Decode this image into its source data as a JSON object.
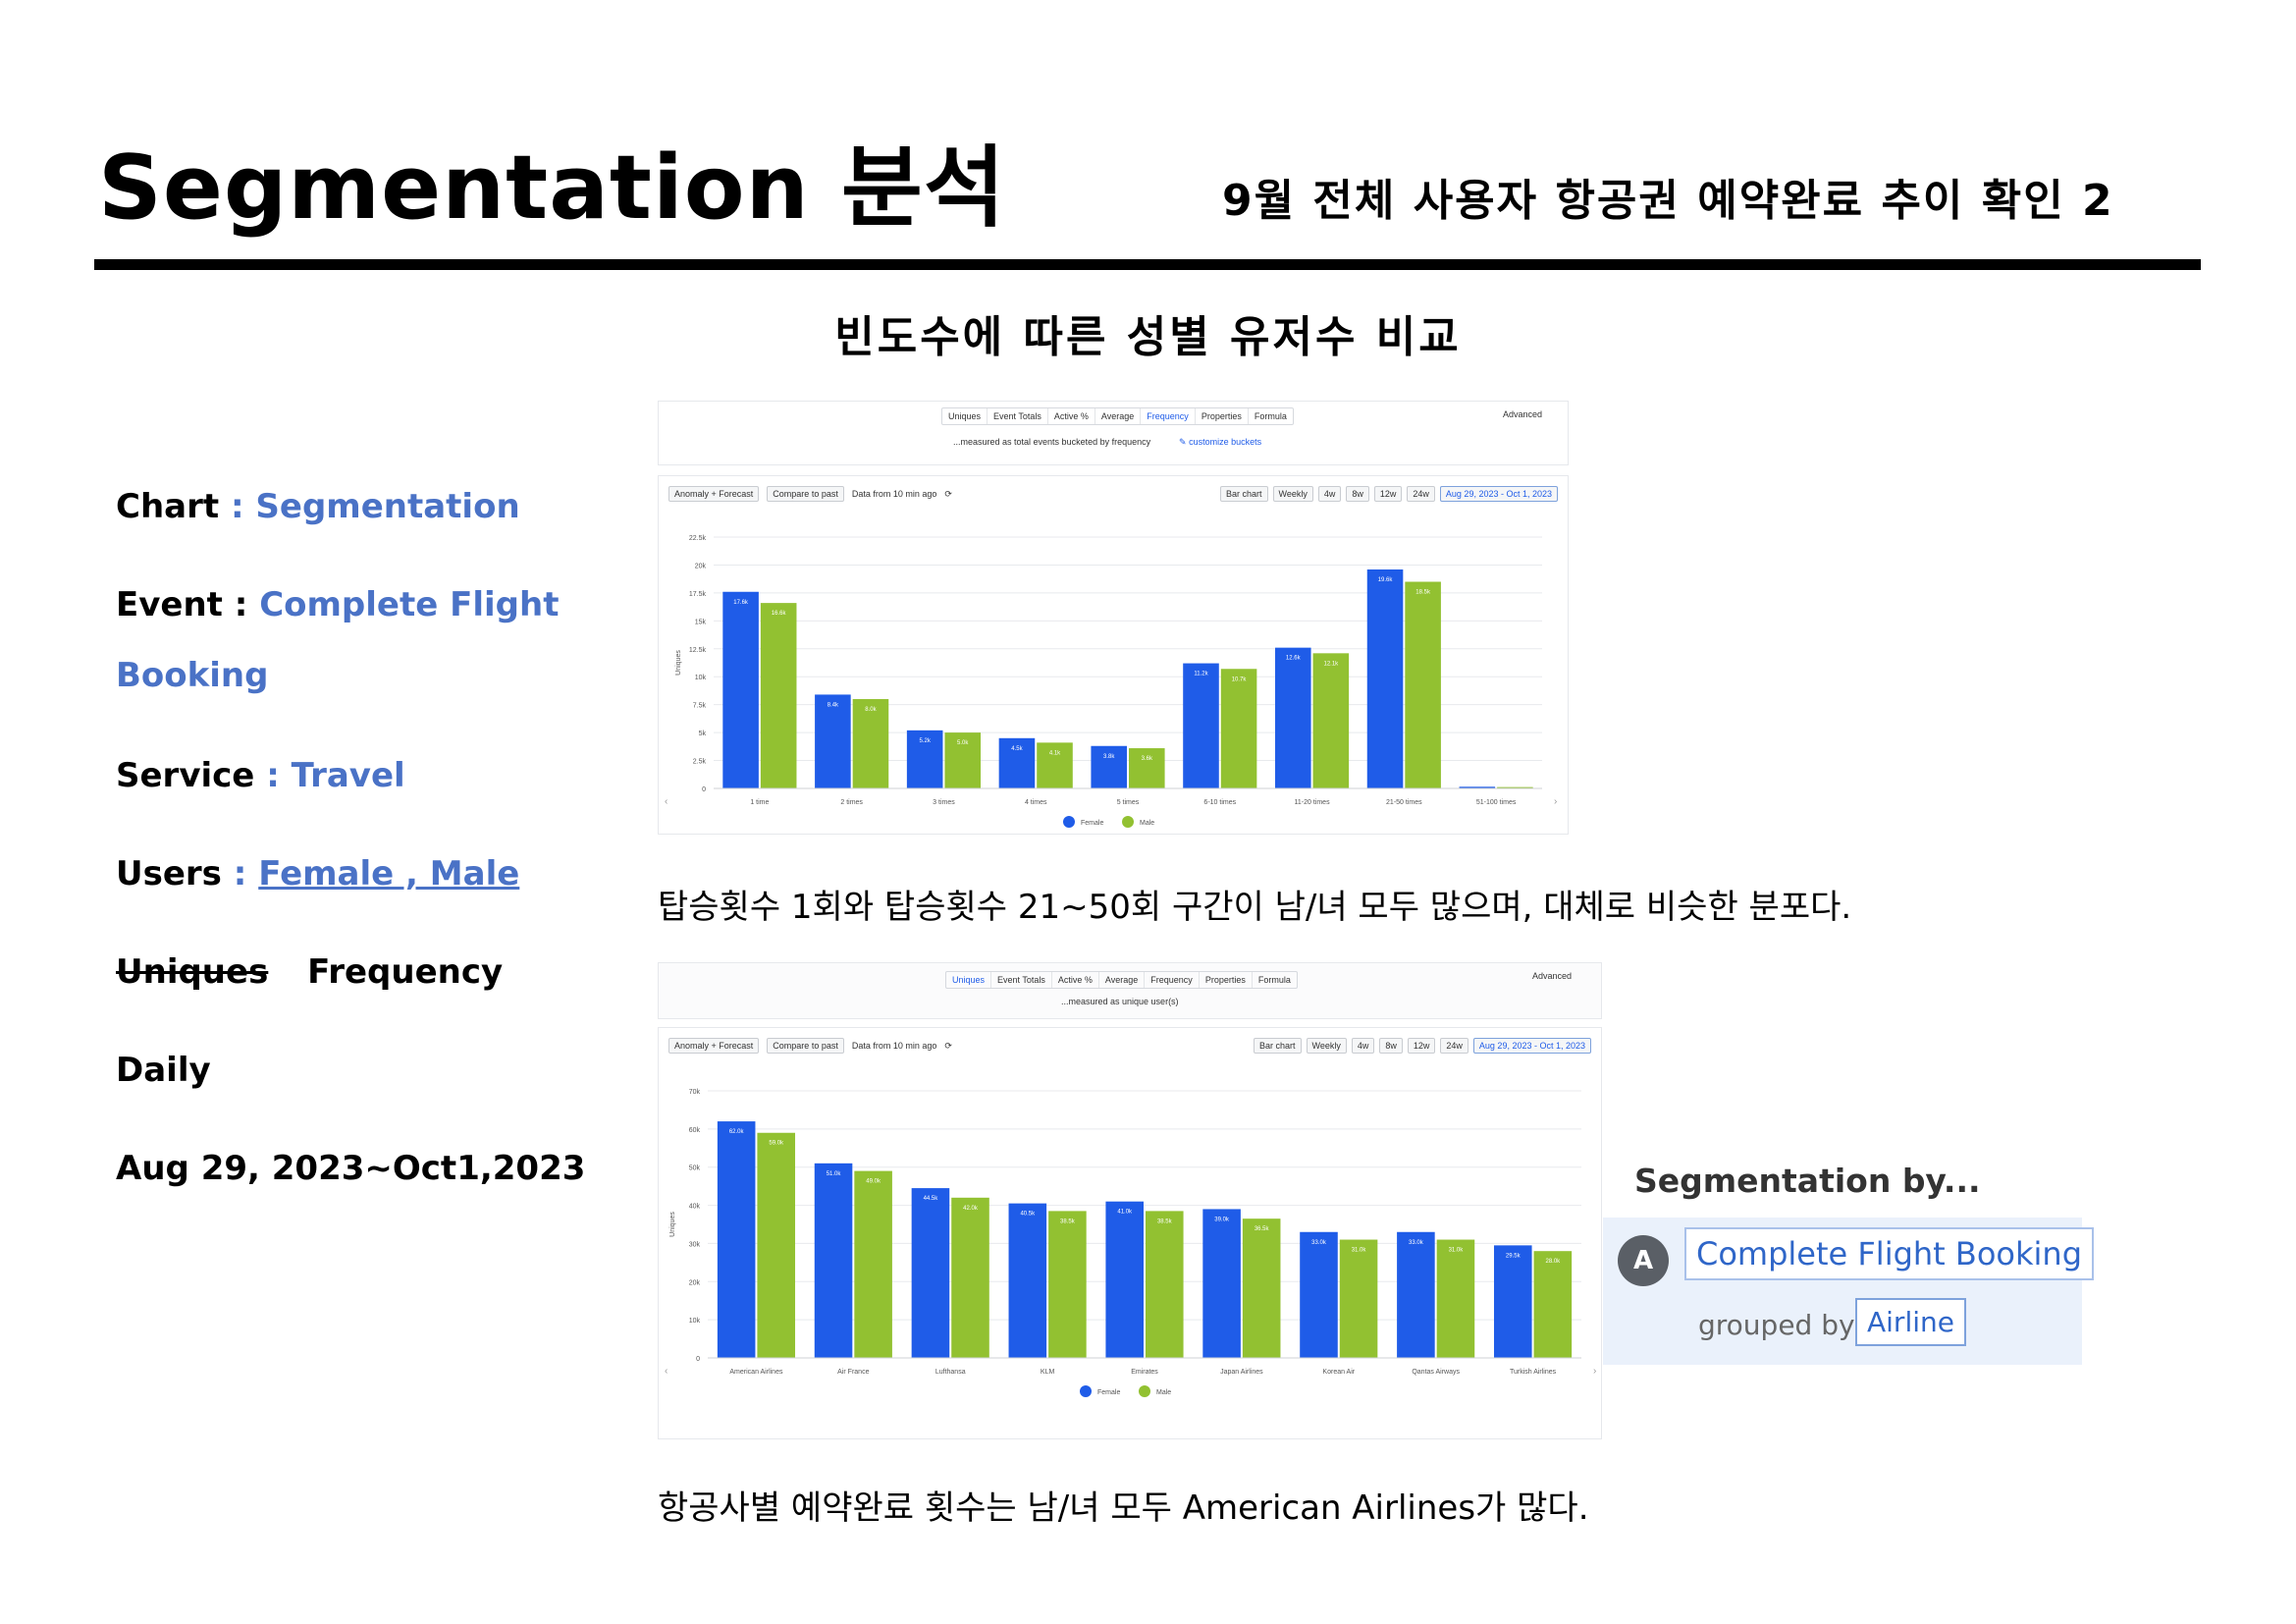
{
  "header": {
    "title": "Segmentation 분석",
    "subtitle": "9월 전체 사용자 항공권 예약완료 추이 확인 2"
  },
  "section_heading": "빈도수에 따른 성별 유저수 비교",
  "meta": {
    "chart_label": "Chart",
    "chart_value": ": Segmentation",
    "event_label": "Event :",
    "event_value_1": "Complete Flight",
    "event_value_2": "Booking",
    "service_label": "Service",
    "service_value": ": Travel",
    "users_label": "Users",
    "users_colon": ":",
    "users_value": "Female , Male",
    "uniques": "Uniques",
    "frequency": "Frequency",
    "daily": "Daily",
    "date_range": "Aug 29, 2023~Oct1,2023"
  },
  "panel1": {
    "tabs": [
      "Uniques",
      "Event Totals",
      "Active %",
      "Average",
      "Frequency",
      "Properties",
      "Formula"
    ],
    "active_tab": "Frequency",
    "advanced": "Advanced",
    "measured_note": "...measured as total events bucketed by frequency",
    "customize": "customize buckets",
    "anomaly_btn": "Anomaly + Forecast",
    "compare_btn": "Compare to past",
    "data_from": "Data from 10 min ago",
    "chart_type": "Bar chart",
    "interval": "Weekly",
    "ranges": [
      "4w",
      "8w",
      "12w",
      "24w"
    ],
    "date_range": "Aug 29, 2023 - Oct 1, 2023",
    "y_axis_label": "Uniques"
  },
  "panel2": {
    "tabs": [
      "Uniques",
      "Event Totals",
      "Active %",
      "Average",
      "Frequency",
      "Properties",
      "Formula"
    ],
    "active_tab": "Uniques",
    "advanced": "Advanced",
    "measured_note": "...measured as unique user(s)",
    "anomaly_btn": "Anomaly + Forecast",
    "compare_btn": "Compare to past",
    "data_from": "Data from 10 min ago",
    "chart_type": "Bar chart",
    "interval": "Weekly",
    "ranges": [
      "4w",
      "8w",
      "12w",
      "24w"
    ],
    "date_range": "Aug 29, 2023 - Oct 1, 2023",
    "y_axis_label": "Uniques"
  },
  "caption1": "탑승횟수 1회와 탑승횟수 21~50회 구간이 남/녀 모두 많으며, 대체로 비슷한 분포다.",
  "caption2": "항공사별 예약완료 횟수는 남/녀 모두 American Airlines가 많다.",
  "segmentation_card": {
    "title": "Segmentation by...",
    "avatar": "A",
    "event": "Complete Flight Booking",
    "grouped_by": "grouped by",
    "group": "Airline"
  },
  "colors": {
    "female": "#1f5ce8",
    "male": "#92c131",
    "link": "#4a72c6"
  },
  "chart_data": [
    {
      "type": "bar",
      "categories": [
        "1 time",
        "2 times",
        "3 times",
        "4 times",
        "5 times",
        "6-10 times",
        "11-20 times",
        "21-50 times",
        "51-100 times"
      ],
      "series": [
        {
          "name": "Female",
          "values": [
            17600,
            8400,
            5200,
            4500,
            3800,
            11200,
            12600,
            19600,
            150
          ]
        },
        {
          "name": "Male",
          "values": [
            16600,
            8000,
            5000,
            4100,
            3600,
            10700,
            12100,
            18500,
            120
          ]
        }
      ],
      "y_ticks": [
        "0",
        "2.5k",
        "5k",
        "7.5k",
        "10k",
        "12.5k",
        "15k",
        "17.5k",
        "20k",
        "22.5k"
      ],
      "ylim": [
        0,
        22500
      ],
      "ylabel": "Uniques",
      "legend": "bottom",
      "grid": true
    },
    {
      "type": "bar",
      "categories": [
        "American Airlines",
        "Air France",
        "Lufthansa",
        "KLM",
        "Emirates",
        "Japan Airlines",
        "Korean Air",
        "Qantas Airways",
        "Turkish Airlines"
      ],
      "series": [
        {
          "name": "Female",
          "values": [
            62000,
            51000,
            44500,
            40500,
            41000,
            39000,
            33000,
            33000,
            29500
          ]
        },
        {
          "name": "Male",
          "values": [
            59000,
            49000,
            42000,
            38500,
            38500,
            36500,
            31000,
            31000,
            28000
          ]
        }
      ],
      "y_ticks": [
        "0",
        "10k",
        "20k",
        "30k",
        "40k",
        "50k",
        "60k",
        "70k"
      ],
      "ylim": [
        0,
        70000
      ],
      "ylabel": "Uniques",
      "legend": "bottom",
      "grid": true
    }
  ]
}
